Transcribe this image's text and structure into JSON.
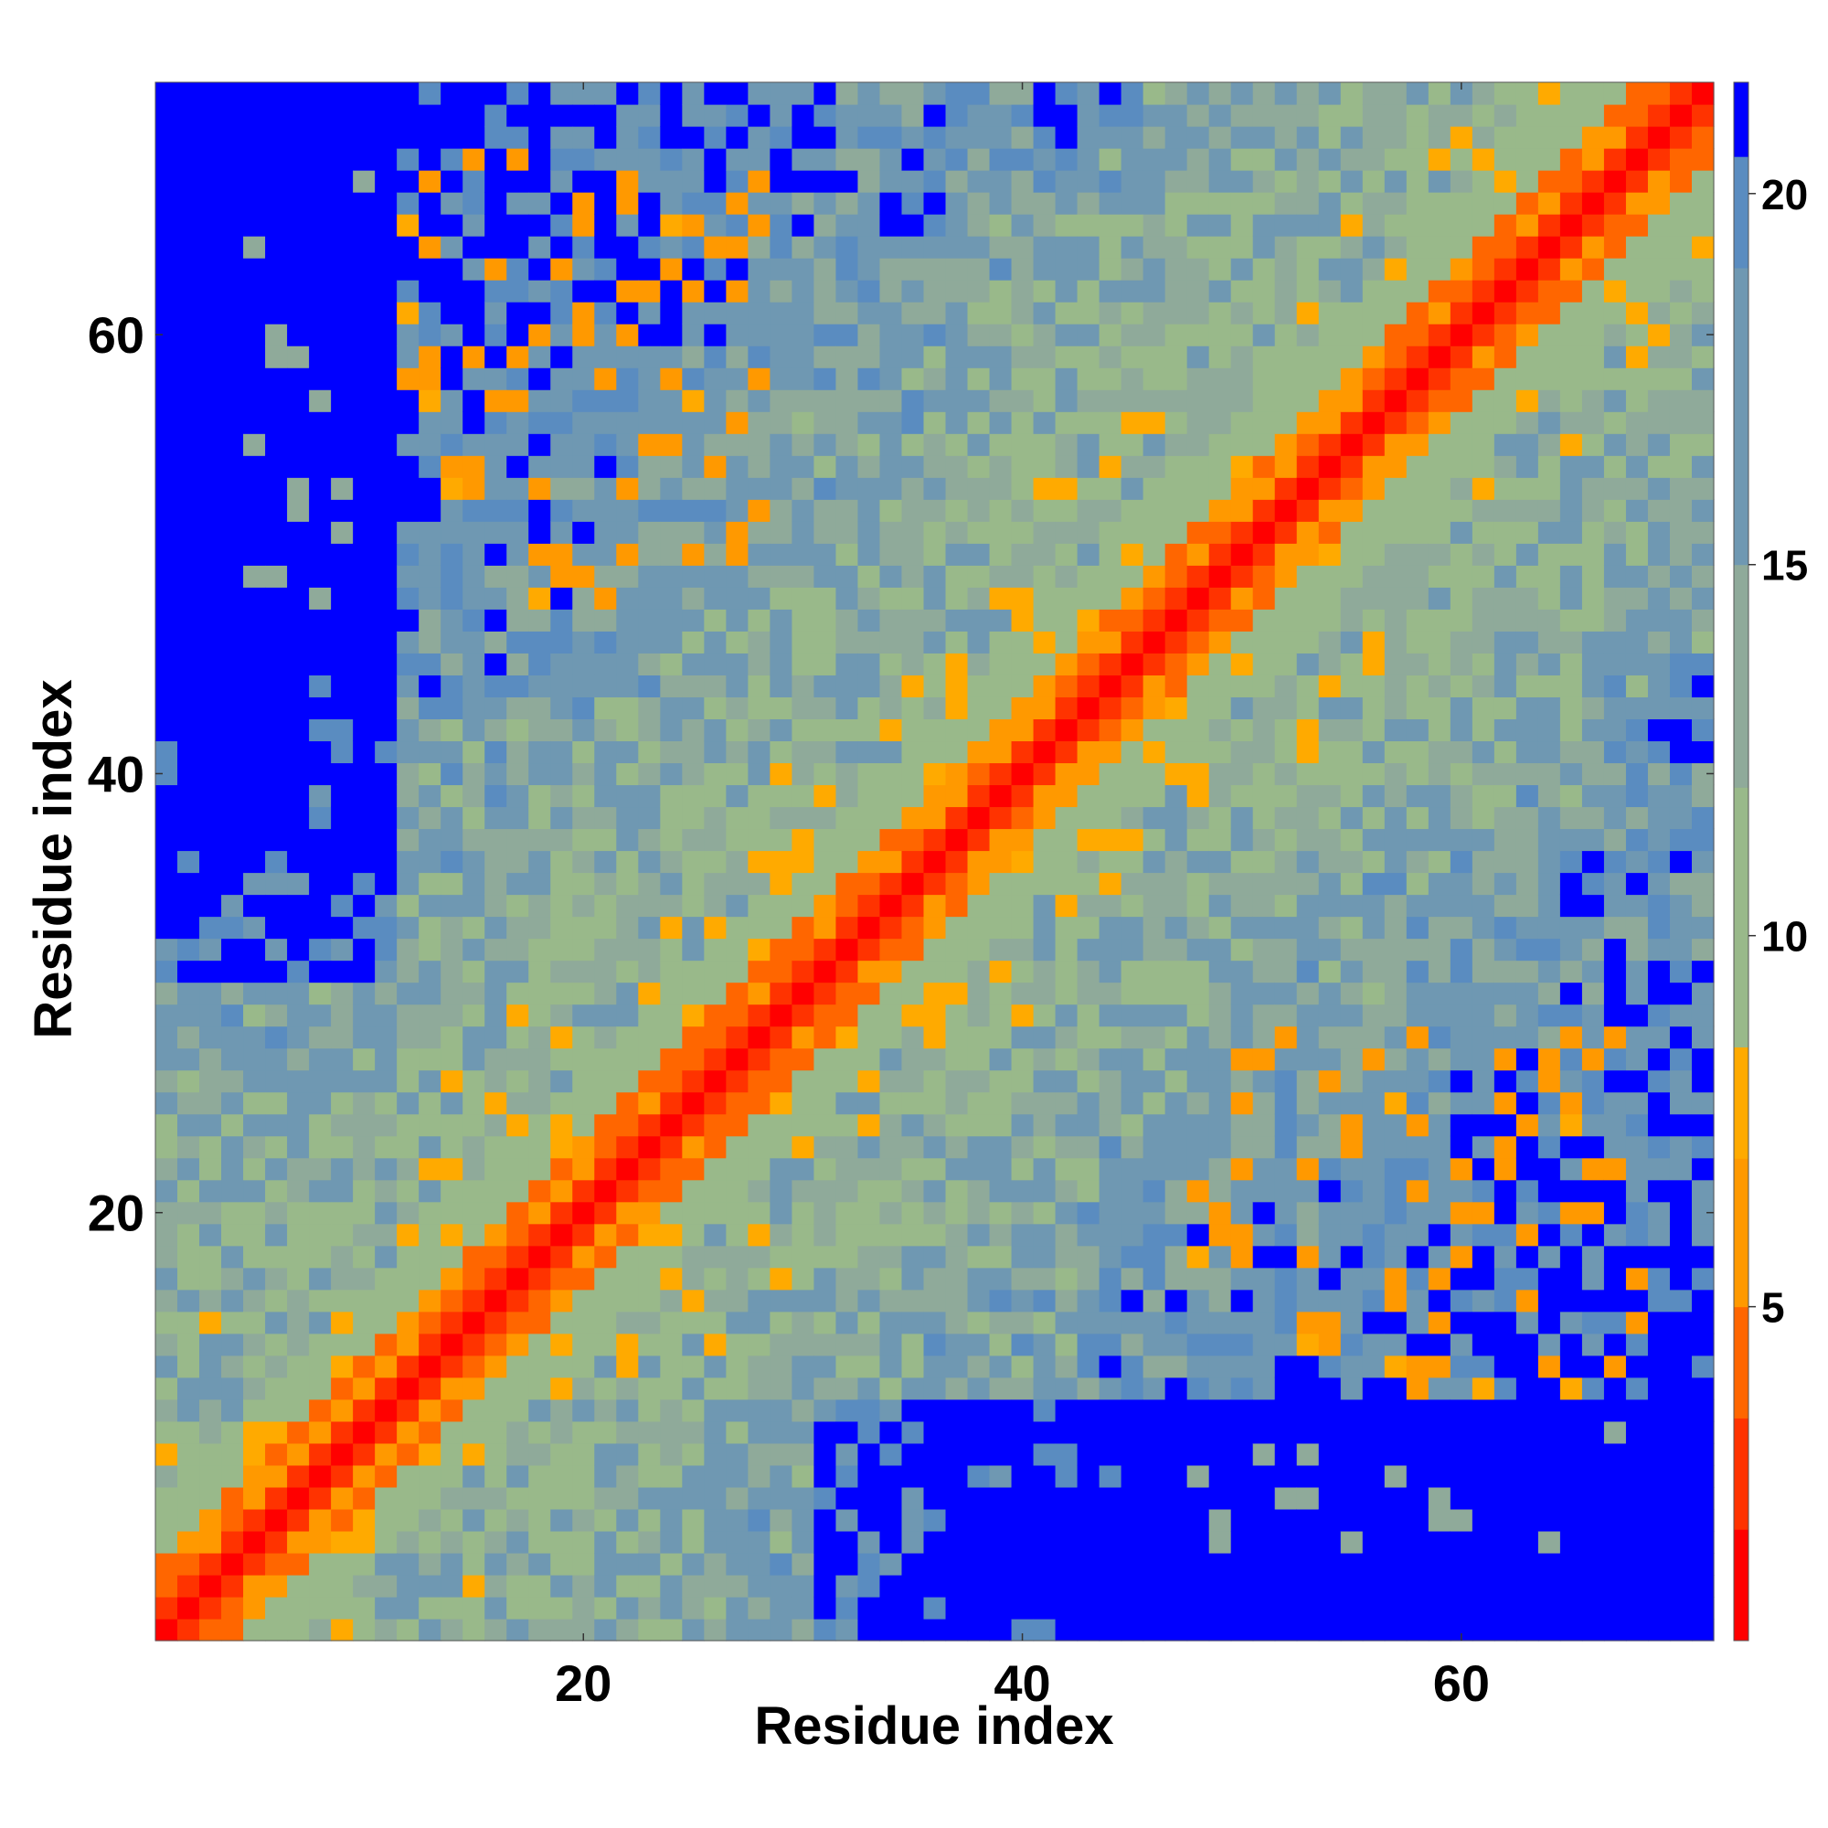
{
  "chart_data": {
    "type": "heatmap",
    "title": "",
    "xlabel": "Residue index",
    "ylabel": "Residue index",
    "xlim": [
      1,
      71
    ],
    "ylim": [
      1,
      71
    ],
    "n_residues": 71,
    "x_ticks": [
      20,
      40,
      60
    ],
    "y_ticks": [
      20,
      40,
      60
    ],
    "colorbar": {
      "min": 0.5,
      "max": 21.5,
      "ticks": [
        5,
        10,
        15,
        20
      ],
      "colors": [
        "#ff0000",
        "#ff3300",
        "#ff6600",
        "#ff9900",
        "#ffaa00",
        "#99b98a",
        "#8faa9a",
        "#6f98b2",
        "#5a8cc0",
        "#0000ff"
      ],
      "bounds": [
        0.5,
        2,
        3.5,
        5,
        7,
        8.5,
        12,
        15,
        19,
        20.5,
        21.5
      ]
    },
    "description": "symmetric pairwise residue distance map"
  }
}
